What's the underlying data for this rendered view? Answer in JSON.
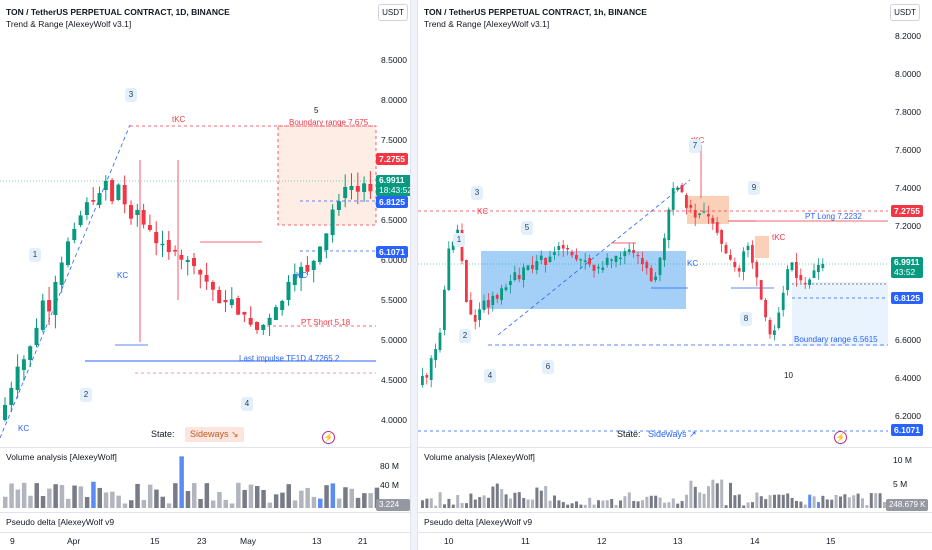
{
  "colors": {
    "up": "#089981",
    "down": "#f23645",
    "blue": "#2962ff",
    "orange": "#f7a072",
    "grey": "#787b86"
  },
  "left": {
    "title": "TON / TetherUS PERPETUAL CONTRACT, 1D, BINANCE",
    "indicator": "Trend & Range [AlexeyWolf v3.1]",
    "currency": "USDT",
    "price_ticks": [
      {
        "label": "8.5000",
        "v": 8.5
      },
      {
        "label": "8.0000",
        "v": 8.0
      },
      {
        "label": "7.5000",
        "v": 7.5
      },
      {
        "label": "6.5000",
        "v": 6.5
      },
      {
        "label": "6.0000",
        "v": 6.0
      },
      {
        "label": "5.5000",
        "v": 5.5
      },
      {
        "label": "5.0000",
        "v": 5.0
      },
      {
        "label": "4.5000",
        "v": 4.5
      },
      {
        "label": "4.0000",
        "v": 4.0
      }
    ],
    "tags": {
      "boundary_top": "7.2755",
      "price_now": "6.9911",
      "countdown": "18:43:52",
      "level_mid": "6.8125",
      "level_low": "6.1071"
    },
    "annotations": {
      "tkc": "tKC",
      "boundary": "Boundary range 7.675",
      "pt_short": "PT Short 5.18",
      "last_impulse": "Last impulse TF1D 4.7265 2",
      "kc_a": "KC",
      "kc_b": "KC",
      "kc_c": "KC",
      "state_label": "State:",
      "state_value": "Sideways ↘"
    },
    "waves": {
      "w1": "1",
      "w2": "2",
      "w3": "3",
      "w4": "4",
      "w5": "5"
    },
    "volume_label": "Volume analysis [AlexeyWolf]",
    "volume_ticks": {
      "a": "80 M",
      "b": "40 M"
    },
    "volume_value": "3.224 M",
    "delta_label": "Pseudo delta [AlexeyWolf v9",
    "time_ticks": [
      "9",
      "Apr",
      "15",
      "23",
      "May",
      "13",
      "21"
    ]
  },
  "right": {
    "title": "TON / TetherUS PERPETUAL CONTRACT, 1h, BINANCE",
    "indicator": "Trend & Range [AlexeyWolf v3.1]",
    "currency": "USDT",
    "price_ticks": [
      {
        "label": "8.2000",
        "v": 8.2
      },
      {
        "label": "8.0000",
        "v": 8.0
      },
      {
        "label": "7.8000",
        "v": 7.8
      },
      {
        "label": "7.6000",
        "v": 7.6
      },
      {
        "label": "7.4000",
        "v": 7.4
      },
      {
        "label": "7.2000",
        "v": 7.2
      },
      {
        "label": "6.6000",
        "v": 6.6
      },
      {
        "label": "6.4000",
        "v": 6.4
      },
      {
        "label": "6.2000",
        "v": 6.2
      }
    ],
    "tags": {
      "boundary_top": "7.2755",
      "price_now": "6.9911",
      "countdown": "43:52",
      "level_mid": "6.8125",
      "level_low": "6.1071"
    },
    "annotations": {
      "tkc_a": "tKC",
      "tkc_b": "tKC",
      "kc": "KC",
      "kc_b": "KC",
      "pt_long": "PT Long 7.2232",
      "boundary": "Boundary range 6.5615",
      "state_label": "State:",
      "state_value": "Sideways ↗"
    },
    "waves": {
      "w1": "1",
      "w2": "2",
      "w3": "3",
      "w4": "4",
      "w5": "5",
      "w6": "6",
      "w7": "7",
      "w8": "8",
      "w9": "9",
      "w10": "10"
    },
    "volume_label": "Volume analysis [AlexeyWolf]",
    "volume_ticks": {
      "a": "10 M",
      "b": "5 M"
    },
    "volume_value": "248.679 K",
    "delta_label": "Pseudo delta [AlexeyWolf v9",
    "time_ticks": [
      "10",
      "11",
      "12",
      "13",
      "14",
      "15"
    ]
  }
}
